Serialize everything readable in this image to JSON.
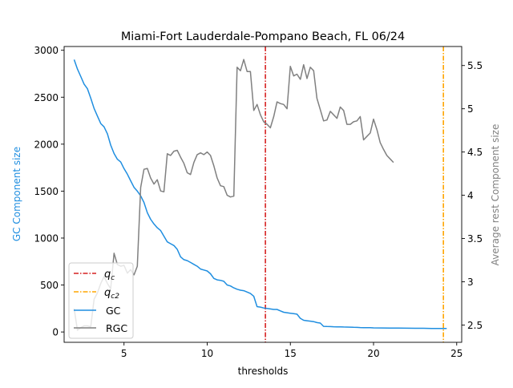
{
  "chart_data": {
    "type": "line",
    "title": "Miami-Fort Lauderdale-Pompano Beach, FL 06/24",
    "xlabel": "thresholds",
    "ylabel_left": "GC Component size",
    "ylabel_right": "Average rest Component size",
    "xlim": [
      1.4,
      25.3
    ],
    "ylim_left": [
      -110,
      3040
    ],
    "ylim_right": [
      2.3,
      5.72
    ],
    "x_ticks": [
      5,
      10,
      15,
      20,
      25
    ],
    "y_ticks_left": [
      0,
      500,
      1000,
      1500,
      2000,
      2500,
      3000
    ],
    "y_ticks_right": [
      2.5,
      3.0,
      3.5,
      4.0,
      4.5,
      5.0,
      5.5
    ],
    "grid": false,
    "legend_position": "lower-left",
    "colors": {
      "gc": "#1f8ee0",
      "rgc": "#808080",
      "qc": "#d62020",
      "qc2": "#ffa500"
    },
    "vlines": [
      {
        "label": "q_c",
        "x": 13.5,
        "color": "#d62020"
      },
      {
        "label": "q_c2",
        "x": 24.2,
        "color": "#ffa500"
      }
    ],
    "legend": [
      "q_c",
      "q_c2",
      "GC",
      "RGC"
    ],
    "series": [
      {
        "name": "GC",
        "axis": "left",
        "points": [
          [
            2.0,
            2900
          ],
          [
            2.2,
            2800
          ],
          [
            2.4,
            2720
          ],
          [
            2.6,
            2640
          ],
          [
            2.8,
            2590
          ],
          [
            3.0,
            2490
          ],
          [
            3.2,
            2380
          ],
          [
            3.4,
            2300
          ],
          [
            3.6,
            2220
          ],
          [
            3.8,
            2185
          ],
          [
            4.0,
            2110
          ],
          [
            4.2,
            1990
          ],
          [
            4.4,
            1900
          ],
          [
            4.6,
            1840
          ],
          [
            4.8,
            1810
          ],
          [
            5.0,
            1740
          ],
          [
            5.2,
            1680
          ],
          [
            5.4,
            1610
          ],
          [
            5.6,
            1540
          ],
          [
            5.8,
            1500
          ],
          [
            6.0,
            1450
          ],
          [
            6.2,
            1380
          ],
          [
            6.4,
            1270
          ],
          [
            6.6,
            1200
          ],
          [
            6.8,
            1150
          ],
          [
            7.0,
            1110
          ],
          [
            7.2,
            1080
          ],
          [
            7.4,
            1020
          ],
          [
            7.6,
            960
          ],
          [
            7.8,
            940
          ],
          [
            8.0,
            920
          ],
          [
            8.2,
            880
          ],
          [
            8.4,
            800
          ],
          [
            8.6,
            770
          ],
          [
            8.8,
            760
          ],
          [
            9.0,
            740
          ],
          [
            9.2,
            720
          ],
          [
            9.4,
            700
          ],
          [
            9.6,
            670
          ],
          [
            9.8,
            660
          ],
          [
            10.0,
            650
          ],
          [
            10.2,
            620
          ],
          [
            10.4,
            570
          ],
          [
            10.6,
            555
          ],
          [
            10.8,
            550
          ],
          [
            11.0,
            540
          ],
          [
            11.2,
            500
          ],
          [
            11.4,
            490
          ],
          [
            11.6,
            470
          ],
          [
            11.8,
            455
          ],
          [
            12.0,
            445
          ],
          [
            12.2,
            440
          ],
          [
            12.4,
            425
          ],
          [
            12.6,
            410
          ],
          [
            12.8,
            380
          ],
          [
            13.0,
            270
          ],
          [
            13.2,
            265
          ],
          [
            13.4,
            255
          ],
          [
            13.6,
            250
          ],
          [
            13.8,
            245
          ],
          [
            14.0,
            240
          ],
          [
            14.2,
            240
          ],
          [
            14.4,
            225
          ],
          [
            14.6,
            210
          ],
          [
            14.8,
            205
          ],
          [
            15.0,
            200
          ],
          [
            15.2,
            195
          ],
          [
            15.4,
            190
          ],
          [
            15.6,
            145
          ],
          [
            15.8,
            125
          ],
          [
            16.0,
            120
          ],
          [
            16.2,
            115
          ],
          [
            16.4,
            110
          ],
          [
            16.6,
            100
          ],
          [
            16.8,
            95
          ],
          [
            17.0,
            60
          ],
          [
            17.2,
            58
          ],
          [
            17.4,
            57
          ],
          [
            17.6,
            56
          ],
          [
            17.8,
            55
          ],
          [
            18.0,
            55
          ],
          [
            18.2,
            53
          ],
          [
            18.4,
            52
          ],
          [
            18.6,
            51
          ],
          [
            18.8,
            50
          ],
          [
            19.0,
            49
          ],
          [
            19.2,
            47
          ],
          [
            19.4,
            46
          ],
          [
            19.6,
            45
          ],
          [
            19.8,
            45
          ],
          [
            20.0,
            44
          ],
          [
            20.5,
            43
          ],
          [
            21.0,
            42
          ],
          [
            21.5,
            41
          ],
          [
            22.0,
            40
          ],
          [
            22.5,
            39
          ],
          [
            23.0,
            39
          ],
          [
            23.5,
            38
          ],
          [
            24.0,
            37
          ],
          [
            24.4,
            37
          ]
        ]
      },
      {
        "name": "RGC",
        "axis": "right",
        "points": [
          [
            2.0,
            2.69
          ],
          [
            2.2,
            2.44
          ],
          [
            2.4,
            2.47
          ],
          [
            2.6,
            2.49
          ],
          [
            2.8,
            2.49
          ],
          [
            3.0,
            2.48
          ],
          [
            3.2,
            2.8
          ],
          [
            3.4,
            2.87
          ],
          [
            3.6,
            2.98
          ],
          [
            3.8,
            3.06
          ],
          [
            4.0,
            2.98
          ],
          [
            4.2,
            2.92
          ],
          [
            4.4,
            3.33
          ],
          [
            4.6,
            3.2
          ],
          [
            4.8,
            3.18
          ],
          [
            5.0,
            3.19
          ],
          [
            5.2,
            3.1
          ],
          [
            5.4,
            3.14
          ],
          [
            5.6,
            3.08
          ],
          [
            5.8,
            3.18
          ],
          [
            6.0,
            4.09
          ],
          [
            6.2,
            4.3
          ],
          [
            6.4,
            4.31
          ],
          [
            6.6,
            4.2
          ],
          [
            6.8,
            4.13
          ],
          [
            7.0,
            4.18
          ],
          [
            7.2,
            4.05
          ],
          [
            7.4,
            4.04
          ],
          [
            7.6,
            4.48
          ],
          [
            7.8,
            4.46
          ],
          [
            8.0,
            4.51
          ],
          [
            8.2,
            4.52
          ],
          [
            8.4,
            4.44
          ],
          [
            8.6,
            4.37
          ],
          [
            8.8,
            4.26
          ],
          [
            9.0,
            4.24
          ],
          [
            9.2,
            4.38
          ],
          [
            9.4,
            4.47
          ],
          [
            9.6,
            4.49
          ],
          [
            9.8,
            4.47
          ],
          [
            10.0,
            4.5
          ],
          [
            10.2,
            4.46
          ],
          [
            10.4,
            4.34
          ],
          [
            10.6,
            4.2
          ],
          [
            10.8,
            4.11
          ],
          [
            11.0,
            4.1
          ],
          [
            11.2,
            4.0
          ],
          [
            11.4,
            3.98
          ],
          [
            11.6,
            3.99
          ],
          [
            11.8,
            5.48
          ],
          [
            12.0,
            5.44
          ],
          [
            12.2,
            5.57
          ],
          [
            12.4,
            5.43
          ],
          [
            12.6,
            5.43
          ],
          [
            12.8,
            4.98
          ],
          [
            13.0,
            5.05
          ],
          [
            13.2,
            4.93
          ],
          [
            13.4,
            4.85
          ],
          [
            13.6,
            4.82
          ],
          [
            13.8,
            4.78
          ],
          [
            14.0,
            4.91
          ],
          [
            14.2,
            5.08
          ],
          [
            14.4,
            5.06
          ],
          [
            14.6,
            5.05
          ],
          [
            14.8,
            5.0
          ],
          [
            15.0,
            5.49
          ],
          [
            15.2,
            5.38
          ],
          [
            15.4,
            5.4
          ],
          [
            15.6,
            5.34
          ],
          [
            15.8,
            5.51
          ],
          [
            16.0,
            5.35
          ],
          [
            16.2,
            5.48
          ],
          [
            16.4,
            5.44
          ],
          [
            16.6,
            5.12
          ],
          [
            16.8,
            4.99
          ],
          [
            17.0,
            4.86
          ],
          [
            17.2,
            4.87
          ],
          [
            17.4,
            4.97
          ],
          [
            17.6,
            4.93
          ],
          [
            17.8,
            4.89
          ],
          [
            18.0,
            5.02
          ],
          [
            18.2,
            4.98
          ],
          [
            18.4,
            4.82
          ],
          [
            18.6,
            4.82
          ],
          [
            18.8,
            4.85
          ],
          [
            19.0,
            4.86
          ],
          [
            19.2,
            4.91
          ],
          [
            19.4,
            4.64
          ],
          [
            19.6,
            4.68
          ],
          [
            19.8,
            4.72
          ],
          [
            20.0,
            4.88
          ],
          [
            20.2,
            4.76
          ],
          [
            20.4,
            4.61
          ],
          [
            20.6,
            4.53
          ],
          [
            20.8,
            4.46
          ],
          [
            21.0,
            4.42
          ],
          [
            21.2,
            4.38
          ]
        ]
      }
    ]
  }
}
